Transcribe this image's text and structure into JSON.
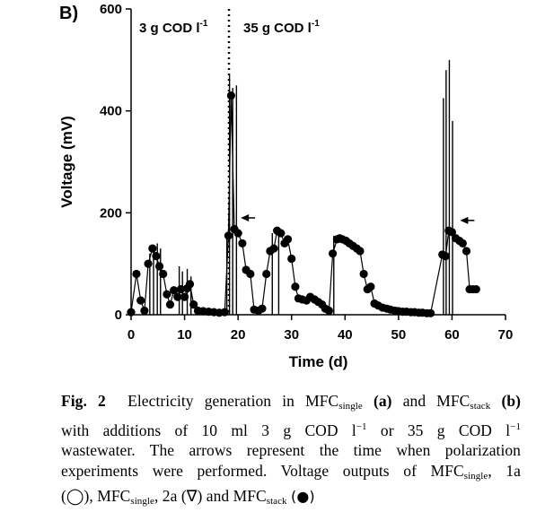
{
  "panel_label": "B)",
  "chart_data": {
    "type": "line",
    "title": "",
    "xlabel": "Time (d)",
    "ylabel": "Voltage (mV)",
    "xlim": [
      0,
      70
    ],
    "ylim": [
      0,
      600
    ],
    "xticks": [
      0,
      10,
      20,
      30,
      40,
      50,
      60,
      70
    ],
    "yticks": [
      0,
      200,
      400,
      600
    ],
    "grid": false,
    "legend": "none",
    "annotations": {
      "region_left": {
        "label": "3 g COD l",
        "superscript": "-1"
      },
      "region_right": {
        "label": "35 g COD l",
        "superscript": "-1"
      },
      "divider_x": 18.3,
      "arrows": [
        {
          "x": 19.5,
          "y": 190
        },
        {
          "x": 60.5,
          "y": 185
        }
      ]
    },
    "series": [
      {
        "name": "MFCstack",
        "marker": "filled-circle",
        "color": "#000000",
        "points": [
          [
            0,
            5
          ],
          [
            1,
            80
          ],
          [
            1.8,
            28
          ],
          [
            2.5,
            8
          ],
          [
            3.2,
            100
          ],
          [
            4,
            130
          ],
          [
            4.7,
            115
          ],
          [
            5.3,
            95
          ],
          [
            6,
            80
          ],
          [
            6.7,
            40
          ],
          [
            7.3,
            20
          ],
          [
            8,
            48
          ],
          [
            8.7,
            35
          ],
          [
            9.3,
            50
          ],
          [
            10,
            35
          ],
          [
            10.5,
            52
          ],
          [
            11,
            60
          ],
          [
            11.7,
            20
          ],
          [
            12.5,
            8
          ],
          [
            13.5,
            7
          ],
          [
            14.5,
            6
          ],
          [
            15.5,
            5
          ],
          [
            16.5,
            4
          ],
          [
            17.5,
            5
          ],
          [
            18.2,
            155
          ],
          [
            18.7,
            430
          ],
          [
            19.3,
            168
          ],
          [
            20,
            160
          ],
          [
            20.8,
            140
          ],
          [
            21.5,
            88
          ],
          [
            22.3,
            80
          ],
          [
            23,
            10
          ],
          [
            23.8,
            8
          ],
          [
            24.5,
            12
          ],
          [
            25.3,
            80
          ],
          [
            26,
            125
          ],
          [
            26.7,
            130
          ],
          [
            27.3,
            165
          ],
          [
            28,
            160
          ],
          [
            28.7,
            140
          ],
          [
            29.3,
            148
          ],
          [
            30,
            110
          ],
          [
            30.7,
            55
          ],
          [
            31.3,
            32
          ],
          [
            32,
            30
          ],
          [
            32.8,
            28
          ],
          [
            33.5,
            35
          ],
          [
            34.3,
            30
          ],
          [
            35,
            25
          ],
          [
            35.7,
            20
          ],
          [
            36.3,
            12
          ],
          [
            37,
            8
          ],
          [
            37.7,
            120
          ],
          [
            38.5,
            148
          ],
          [
            39,
            150
          ],
          [
            39.5,
            148
          ],
          [
            40.2,
            145
          ],
          [
            40.8,
            140
          ],
          [
            41.5,
            135
          ],
          [
            42.2,
            130
          ],
          [
            42.8,
            125
          ],
          [
            43.5,
            80
          ],
          [
            44.2,
            50
          ],
          [
            44.8,
            55
          ],
          [
            45.5,
            22
          ],
          [
            46.2,
            18
          ],
          [
            47,
            14
          ],
          [
            47.8,
            12
          ],
          [
            48.5,
            10
          ],
          [
            49.3,
            8
          ],
          [
            50,
            7
          ],
          [
            50.8,
            6
          ],
          [
            51.5,
            6
          ],
          [
            52.3,
            5
          ],
          [
            53,
            5
          ],
          [
            53.8,
            4
          ],
          [
            54.5,
            4
          ],
          [
            55.3,
            3
          ],
          [
            56,
            3
          ],
          [
            58.2,
            118
          ],
          [
            58.8,
            115
          ],
          [
            59.4,
            165
          ],
          [
            60,
            162
          ],
          [
            60.7,
            150
          ],
          [
            61.4,
            145
          ],
          [
            62,
            140
          ],
          [
            62.7,
            125
          ],
          [
            63.3,
            50
          ],
          [
            63.9,
            50
          ],
          [
            64.5,
            50
          ]
        ],
        "spikes": [
          [
            3.5,
            120
          ],
          [
            4.2,
            125
          ],
          [
            4.9,
            140
          ],
          [
            5.5,
            130
          ],
          [
            9,
            95
          ],
          [
            9.6,
            85
          ],
          [
            10.5,
            90
          ],
          [
            11.2,
            75
          ],
          [
            17.9,
            160
          ],
          [
            18.4,
            470
          ],
          [
            19,
            445
          ],
          [
            19.7,
            450
          ],
          [
            26.4,
            160
          ],
          [
            27.6,
            155
          ],
          [
            37.9,
            155
          ],
          [
            58.4,
            425
          ],
          [
            58.9,
            480
          ],
          [
            59.5,
            500
          ],
          [
            60.1,
            380
          ]
        ]
      }
    ]
  },
  "caption": {
    "fig_label": "Fig. 2",
    "line1_a": "Electricity generation in MFC",
    "single": "single",
    "stack": "stack",
    "panel_a": "(a)",
    "and": "and MFC",
    "panel_b": "(b)",
    "line2_a": "with additions of 10 ml 3 g COD l",
    "neg1": "−1",
    "or": "or 35 g COD l",
    "line3": "wastewater. The arrows represent the time when polarization",
    "line4_a": "experiments were performed. Voltage outputs of MFC",
    "line4_b": ", 1a",
    "open_circle": "(◯), MFC",
    "line5_b": ", 2a (∇) and MFC",
    "filled_circle": "(●)"
  }
}
